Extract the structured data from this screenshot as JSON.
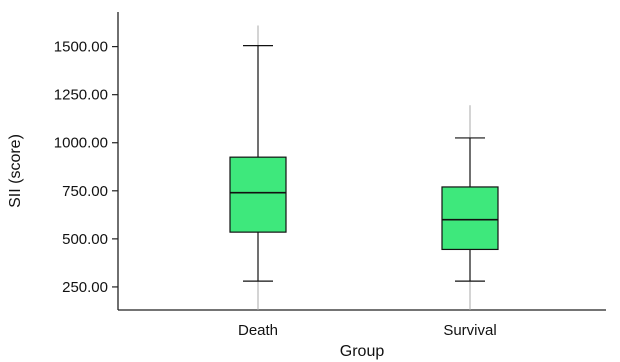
{
  "chart_data": {
    "type": "boxplot",
    "xlabel": "Group",
    "ylabel": "SII (score)",
    "ylim": [
      130,
      1680
    ],
    "yticks": [
      "250.00",
      "500.00",
      "750.00",
      "1000.00",
      "1250.00",
      "1500.00"
    ],
    "categories": [
      "Death",
      "Survival"
    ],
    "boxes": [
      {
        "category": "Death",
        "whisker_low": 280,
        "q1": 535,
        "median": 740,
        "q3": 925,
        "whisker_high": 1505,
        "line_max": 1610
      },
      {
        "category": "Survival",
        "whisker_low": 280,
        "q1": 445,
        "median": 600,
        "q3": 770,
        "whisker_high": 1025,
        "line_max": 1195
      }
    ],
    "box_color": "#3ee87c",
    "grid": false,
    "legend": "none"
  }
}
